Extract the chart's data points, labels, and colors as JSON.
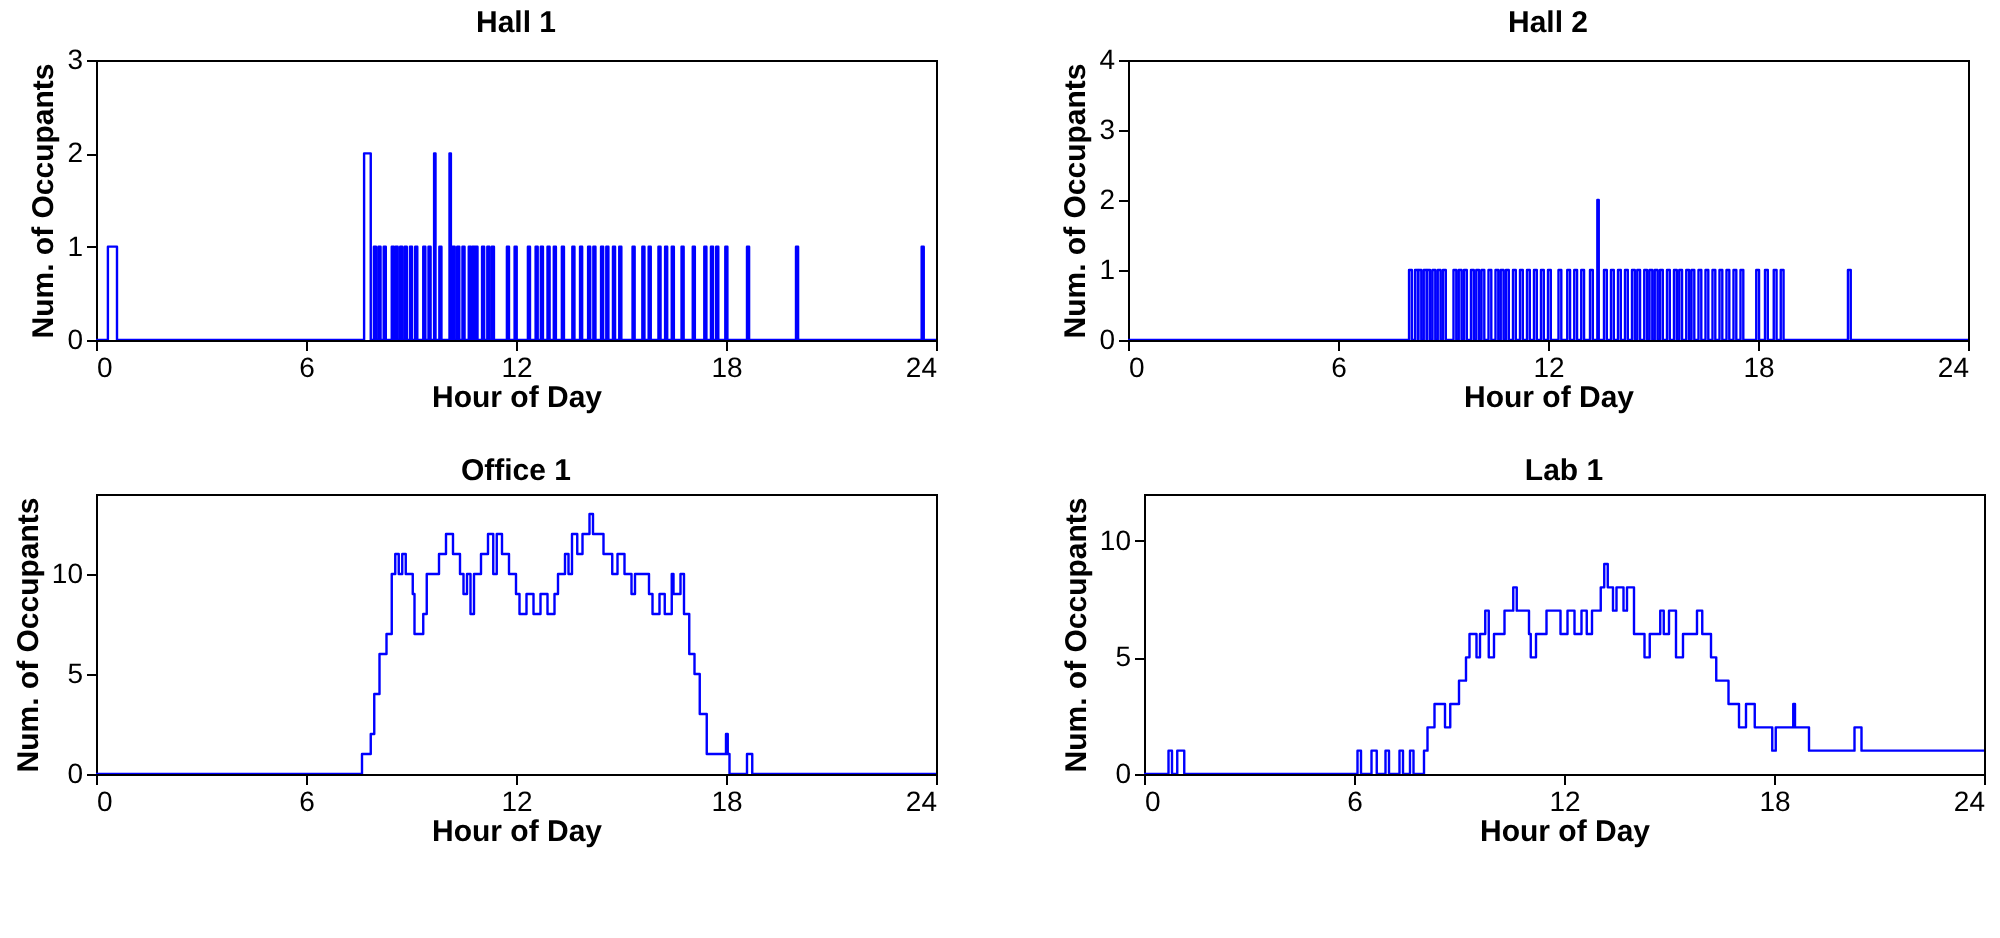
{
  "chart_data": [
    {
      "type": "step",
      "title": "Hall 1",
      "xlabel": "Hour of Day",
      "ylabel": "Num. of Occupants",
      "xlim": [
        0,
        24
      ],
      "xticks": [
        0,
        6,
        12,
        18,
        24
      ],
      "ylim": [
        0,
        3
      ],
      "yticks": [
        0,
        1,
        2,
        3
      ],
      "series": [
        {
          "color": "#0000ff",
          "x": [
            0,
            0.34,
            0.6,
            7.66,
            7.85,
            7.94,
            8.0,
            8.07,
            8.13,
            8.22,
            8.28,
            8.45,
            8.51,
            8.56,
            8.62,
            8.69,
            8.75,
            8.82,
            8.88,
            8.97,
            9.03,
            9.12,
            9.18,
            9.35,
            9.41,
            9.5,
            9.56,
            9.66,
            9.7,
            9.81,
            9.87,
            10.1,
            10.14,
            10.19,
            10.25,
            10.32,
            10.38,
            10.47,
            10.53,
            10.65,
            10.71,
            10.75,
            10.81,
            10.84,
            10.9,
            11.03,
            11.09,
            11.18,
            11.24,
            11.31,
            11.37,
            11.74,
            11.8,
            11.96,
            12.02,
            12.34,
            12.4,
            12.56,
            12.62,
            12.71,
            12.77,
            12.9,
            12.96,
            13.08,
            13.14,
            13.31,
            13.37,
            13.61,
            13.67,
            13.83,
            13.89,
            14.06,
            14.12,
            14.21,
            14.27,
            14.43,
            14.49,
            14.58,
            14.64,
            14.77,
            14.83,
            14.95,
            15.01,
            15.33,
            15.39,
            15.61,
            15.67,
            15.79,
            15.85,
            16.07,
            16.13,
            16.26,
            16.32,
            16.45,
            16.51,
            16.73,
            16.79,
            17.05,
            17.11,
            17.38,
            17.44,
            17.57,
            17.63,
            17.72,
            17.78,
            17.98,
            18.04,
            18.6,
            18.66,
            20.0,
            20.06,
            23.59,
            23.65,
            24
          ],
          "values": [
            0,
            1,
            0,
            2,
            0,
            1,
            0,
            1,
            0,
            1,
            0,
            1,
            0,
            1,
            0,
            1,
            0,
            1,
            0,
            1,
            0,
            1,
            0,
            1,
            0,
            1,
            0,
            2,
            0,
            1,
            0,
            2,
            0,
            1,
            0,
            1,
            0,
            1,
            0,
            1,
            0,
            1,
            0,
            1,
            0,
            1,
            0,
            1,
            0,
            1,
            0,
            1,
            0,
            1,
            0,
            1,
            0,
            1,
            0,
            1,
            0,
            1,
            0,
            1,
            0,
            1,
            0,
            1,
            0,
            1,
            0,
            1,
            0,
            1,
            0,
            1,
            0,
            1,
            0,
            1,
            0,
            1,
            0,
            1,
            0,
            1,
            0,
            1,
            0,
            1,
            0,
            1,
            0,
            1,
            0,
            1,
            0,
            1,
            0,
            1,
            0,
            1,
            0,
            1,
            0,
            1,
            0,
            1,
            0,
            1,
            0,
            1,
            0,
            0
          ]
        }
      ]
    },
    {
      "type": "step",
      "title": "Hall 2",
      "xlabel": "Hour of Day",
      "ylabel": "Num. of Occupants",
      "xlim": [
        0,
        24
      ],
      "xticks": [
        0,
        6,
        12,
        18,
        24
      ],
      "ylim": [
        0,
        4
      ],
      "yticks": [
        0,
        1,
        2,
        3,
        4
      ],
      "series": [
        {
          "color": "#0000ff",
          "x": [
            0,
            8.03,
            8.11,
            8.2,
            8.28,
            8.3,
            8.38,
            8.45,
            8.53,
            8.55,
            8.63,
            8.7,
            8.78,
            8.85,
            8.93,
            9.0,
            9.08,
            9.3,
            9.38,
            9.45,
            9.53,
            9.6,
            9.68,
            9.8,
            9.88,
            9.95,
            10.03,
            10.1,
            10.18,
            10.3,
            10.38,
            10.5,
            10.58,
            10.65,
            10.73,
            10.8,
            10.88,
            11.0,
            11.08,
            11.2,
            11.28,
            11.4,
            11.48,
            11.6,
            11.68,
            11.8,
            11.88,
            12.0,
            12.08,
            12.3,
            12.38,
            12.55,
            12.63,
            12.75,
            12.83,
            12.95,
            13.03,
            13.2,
            13.28,
            13.41,
            13.45,
            13.6,
            13.68,
            13.8,
            13.88,
            14.0,
            14.08,
            14.2,
            14.28,
            14.4,
            14.48,
            14.55,
            14.63,
            14.75,
            14.83,
            14.9,
            14.98,
            15.05,
            15.13,
            15.2,
            15.28,
            15.4,
            15.48,
            15.6,
            15.68,
            15.75,
            15.83,
            15.95,
            16.03,
            16.1,
            16.18,
            16.3,
            16.38,
            16.5,
            16.58,
            16.7,
            16.78,
            16.9,
            16.98,
            17.1,
            17.18,
            17.3,
            17.38,
            17.5,
            17.58,
            17.95,
            18.03,
            18.2,
            18.28,
            18.45,
            18.53,
            18.65,
            18.73,
            20.57,
            20.65,
            24
          ],
          "values": [
            0,
            1,
            0,
            1,
            0,
            1,
            0,
            1,
            0,
            1,
            0,
            1,
            0,
            1,
            0,
            1,
            0,
            1,
            0,
            1,
            0,
            1,
            0,
            1,
            0,
            1,
            0,
            1,
            0,
            1,
            0,
            1,
            0,
            1,
            0,
            1,
            0,
            1,
            0,
            1,
            0,
            1,
            0,
            1,
            0,
            1,
            0,
            1,
            0,
            1,
            0,
            1,
            0,
            1,
            0,
            1,
            0,
            1,
            0,
            2,
            0,
            1,
            0,
            1,
            0,
            1,
            0,
            1,
            0,
            1,
            0,
            1,
            0,
            1,
            0,
            1,
            0,
            1,
            0,
            1,
            0,
            1,
            0,
            1,
            0,
            1,
            0,
            1,
            0,
            1,
            0,
            1,
            0,
            1,
            0,
            1,
            0,
            1,
            0,
            1,
            0,
            1,
            0,
            1,
            0,
            1,
            0,
            1,
            0,
            1,
            0,
            1,
            0,
            1,
            0,
            0
          ]
        }
      ]
    },
    {
      "type": "step",
      "title": "Office 1",
      "xlabel": "Hour of Day",
      "ylabel": "Num. of Occupants",
      "xlim": [
        0,
        24
      ],
      "xticks": [
        0,
        6,
        12,
        18,
        24
      ],
      "ylim": [
        0,
        14
      ],
      "yticks": [
        0,
        5,
        10
      ],
      "series": [
        {
          "color": "#0000ff",
          "x": [
            0,
            7.6,
            7.85,
            7.95,
            8.1,
            8.3,
            8.45,
            8.55,
            8.65,
            8.75,
            8.85,
            9.05,
            9.1,
            9.35,
            9.45,
            9.8,
            10.0,
            10.2,
            10.4,
            10.5,
            10.6,
            10.7,
            10.8,
            11.0,
            11.2,
            11.35,
            11.45,
            11.6,
            11.8,
            12.0,
            12.1,
            12.3,
            12.5,
            12.7,
            12.9,
            13.1,
            13.2,
            13.4,
            13.5,
            13.6,
            13.75,
            13.9,
            14.1,
            14.2,
            14.5,
            14.75,
            14.9,
            15.1,
            15.3,
            15.4,
            15.8,
            15.9,
            16.1,
            16.25,
            16.45,
            16.5,
            16.7,
            16.8,
            16.95,
            17.1,
            17.25,
            17.45,
            18.0,
            18.05,
            18.1,
            18.6,
            18.75,
            24
          ],
          "values": [
            0,
            1,
            2,
            4,
            6,
            7,
            10,
            11,
            10,
            11,
            10,
            9,
            7,
            8,
            10,
            11,
            12,
            11,
            10,
            9,
            10,
            8,
            10,
            11,
            12,
            10,
            12,
            11,
            10,
            9,
            8,
            9,
            8,
            9,
            8,
            9,
            10,
            11,
            10,
            12,
            11,
            12,
            13,
            12,
            11,
            10,
            11,
            10,
            9,
            10,
            9,
            8,
            9,
            8,
            10,
            9,
            10,
            8,
            6,
            5,
            3,
            1,
            2,
            1,
            0,
            1,
            0,
            0
          ]
        }
      ]
    },
    {
      "type": "step",
      "title": "Lab 1",
      "xlabel": "Hour of Day",
      "ylabel": "Num. of Occupants",
      "xlim": [
        0,
        24
      ],
      "xticks": [
        0,
        6,
        12,
        18,
        24
      ],
      "ylim": [
        0,
        12
      ],
      "yticks": [
        0,
        5,
        10
      ],
      "series": [
        {
          "color": "#0000ff",
          "x": [
            0,
            0.7,
            0.8,
            0.95,
            1.15,
            6.1,
            6.2,
            6.5,
            6.65,
            6.9,
            7.0,
            7.3,
            7.4,
            7.6,
            7.7,
            8.0,
            8.1,
            8.3,
            8.6,
            8.75,
            9.0,
            9.2,
            9.3,
            9.5,
            9.6,
            9.75,
            9.85,
            10.0,
            10.3,
            10.55,
            10.65,
            11.0,
            11.05,
            11.2,
            11.5,
            11.9,
            12.1,
            12.3,
            12.5,
            12.65,
            12.8,
            13.05,
            13.15,
            13.25,
            13.4,
            13.5,
            13.7,
            13.8,
            14.0,
            14.3,
            14.45,
            14.75,
            14.85,
            15.0,
            15.2,
            15.4,
            15.8,
            15.95,
            16.2,
            16.35,
            16.7,
            17.0,
            17.2,
            17.45,
            17.95,
            18.05,
            18.55,
            18.6,
            19.0,
            20.3,
            20.5,
            24
          ],
          "values": [
            0,
            1,
            0,
            1,
            0,
            1,
            0,
            1,
            0,
            1,
            0,
            1,
            0,
            1,
            0,
            1,
            2,
            3,
            2,
            3,
            4,
            5,
            6,
            5,
            6,
            7,
            5,
            6,
            7,
            8,
            7,
            6,
            5,
            6,
            7,
            6,
            7,
            6,
            7,
            6,
            7,
            8,
            9,
            8,
            7,
            8,
            7,
            8,
            6,
            5,
            6,
            7,
            6,
            7,
            5,
            6,
            7,
            6,
            5,
            4,
            3,
            2,
            3,
            2,
            1,
            2,
            3,
            2,
            1,
            2,
            1,
            1
          ]
        }
      ]
    }
  ]
}
